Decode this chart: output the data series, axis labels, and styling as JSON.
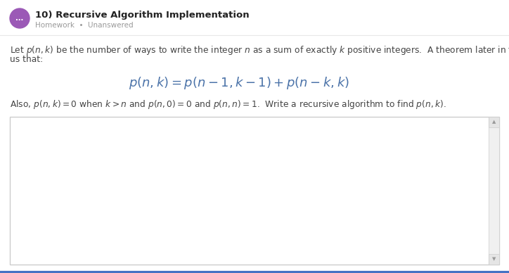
{
  "bg_color": "#ffffff",
  "content_bg": "#ffffff",
  "title": "10) Recursive Algorithm Implementation",
  "badge_color": "#9b59b6",
  "badge_text": "...",
  "subtitle": "Homework  •  Unanswered",
  "subtitle_color": "#999999",
  "title_color": "#222222",
  "body_color": "#444444",
  "formula_color": "#4a72a8",
  "box_border_color": "#cccccc",
  "scrollbar_bg": "#f0f0f0",
  "scrollbar_arrow_color": "#aaaaaa",
  "bottom_border_color": "#4472c4",
  "body1_line1": "Let $p(n, k)$ be the number of ways to write the integer $n$ as a sum of exactly $k$ positive integers.  A theorem later in the text tells",
  "body1_line2": "us that:",
  "formula": "$p(n, k) = p(n-1, k-1) + p(n-k, k)$",
  "body2": "Also, $p(n, k) = 0$ when $k > n$ and $p(n, 0) = 0$ and $p(n, n) = 1$.  Write a recursive algorithm to find $p(n, k)$.",
  "fig_width": 7.24,
  "fig_height": 3.88,
  "dpi": 100
}
